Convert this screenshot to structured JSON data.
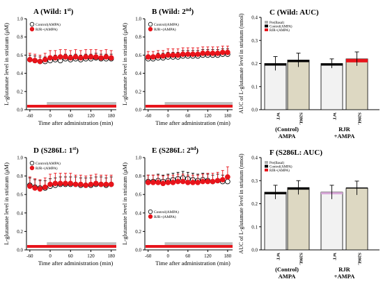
{
  "x_axis_label": "Time after administration (min)",
  "time_y_axis_label": "L-glutamate level in striatum (μM)",
  "auc_y_axis_label": "AUC of L-glutamate level in striatum (nmol)",
  "x_tick_labels": [
    "-60",
    "0",
    "60",
    "120",
    "180"
  ],
  "bar_group_labels": [
    [
      "(Control)",
      "AMPA"
    ],
    [
      "RJR",
      "+AMPA"
    ]
  ],
  "bar_category_labels": [
    "WT",
    "S286L"
  ],
  "colors": {
    "control": "#000000",
    "rjr": "#e8141b",
    "wt_bar": "#f2f2f2",
    "s286l_bar": "#ddd8c2",
    "basal": "#b0b0b0",
    "infusion_red": "#e8141b",
    "infusion_grey": "#c0c0c0",
    "purple": "#d7a6d8"
  },
  "chart_data": [
    {
      "type": "line",
      "panel_letter": "A",
      "title": "(Wild: 1st)",
      "title_parts": [
        "(Wild: 1",
        "st",
        ")"
      ],
      "legend": [
        "Control(AMPA)",
        "RJR+(AMPA)"
      ],
      "ylim": [
        0,
        1.0
      ],
      "yticks": [
        "0.0",
        "0.2",
        "0.4",
        "0.6",
        "0.8",
        "1.0"
      ],
      "xlim": [
        -70,
        195
      ],
      "x": [
        -60,
        -45,
        -30,
        -15,
        0,
        15,
        30,
        45,
        60,
        75,
        90,
        105,
        120,
        135,
        150,
        165,
        180
      ],
      "series": [
        {
          "name": "Control(AMPA)",
          "values": [
            0.55,
            0.54,
            0.53,
            0.53,
            0.54,
            0.55,
            0.54,
            0.56,
            0.55,
            0.56,
            0.55,
            0.56,
            0.56,
            0.57,
            0.56,
            0.56,
            0.56
          ],
          "err": [
            0.05,
            0.05,
            0.05,
            0.05,
            0.05,
            0.05,
            0.05,
            0.05,
            0.05,
            0.05,
            0.05,
            0.05,
            0.05,
            0.05,
            0.05,
            0.05,
            0.05
          ]
        },
        {
          "name": "RJR+(AMPA)",
          "values": [
            0.55,
            0.54,
            0.53,
            0.55,
            0.57,
            0.57,
            0.58,
            0.58,
            0.57,
            0.58,
            0.57,
            0.58,
            0.58,
            0.58,
            0.57,
            0.58,
            0.57
          ],
          "err": [
            0.07,
            0.07,
            0.07,
            0.07,
            0.08,
            0.08,
            0.08,
            0.08,
            0.08,
            0.08,
            0.08,
            0.08,
            0.08,
            0.08,
            0.08,
            0.08,
            0.08
          ]
        }
      ]
    },
    {
      "type": "line",
      "panel_letter": "B",
      "title": "(Wild: 2nd)",
      "title_parts": [
        "(Wild: 2",
        "nd",
        ")"
      ],
      "legend": [
        "Control(AMPA)",
        "RJR+(AMPA)"
      ],
      "ylim": [
        0,
        1.0
      ],
      "yticks": [
        "0.0",
        "0.2",
        "0.4",
        "0.6",
        "0.8",
        "1.0"
      ],
      "xlim": [
        -70,
        195
      ],
      "x": [
        -60,
        -45,
        -30,
        -15,
        0,
        15,
        30,
        45,
        60,
        75,
        90,
        105,
        120,
        135,
        150,
        165,
        180
      ],
      "series": [
        {
          "name": "Control(AMPA)",
          "values": [
            0.56,
            0.56,
            0.57,
            0.57,
            0.58,
            0.58,
            0.58,
            0.59,
            0.59,
            0.59,
            0.59,
            0.6,
            0.6,
            0.6,
            0.6,
            0.61,
            0.61
          ],
          "err": [
            0.04,
            0.04,
            0.05,
            0.05,
            0.05,
            0.05,
            0.05,
            0.06,
            0.06,
            0.06,
            0.06,
            0.06,
            0.06,
            0.06,
            0.06,
            0.06,
            0.06
          ]
        },
        {
          "name": "RJR+(AMPA)",
          "values": [
            0.58,
            0.58,
            0.59,
            0.59,
            0.6,
            0.6,
            0.6,
            0.61,
            0.61,
            0.61,
            0.61,
            0.62,
            0.62,
            0.62,
            0.62,
            0.63,
            0.63
          ],
          "err": [
            0.06,
            0.06,
            0.06,
            0.06,
            0.07,
            0.07,
            0.07,
            0.07,
            0.07,
            0.07,
            0.07,
            0.07,
            0.07,
            0.07,
            0.07,
            0.07,
            0.07
          ]
        }
      ]
    },
    {
      "type": "bar",
      "panel_letter": "C",
      "title": "(Wild: AUC)",
      "legend": [
        "Pre(Basal)",
        "Control(AMPA)",
        "RJR+(AMPA)"
      ],
      "ylim": [
        0,
        0.4
      ],
      "yticks": [
        "0.0",
        "0.1",
        "0.2",
        "0.3",
        "0.4"
      ],
      "categories": [
        "WT",
        "S286L",
        "WT",
        "S286L"
      ],
      "values": [
        0.2,
        0.215,
        0.2,
        0.22
      ],
      "err": [
        0.03,
        0.03,
        0.02,
        0.03
      ],
      "caps": [
        "control",
        "control",
        "control",
        "rjr"
      ]
    },
    {
      "type": "line",
      "panel_letter": "D",
      "title": "(S286L: 1st)",
      "title_parts": [
        "(S286L: 1",
        "st",
        ")"
      ],
      "legend": [
        "Control(AMPA)",
        "RJR+(AMPA)"
      ],
      "ylim": [
        0,
        1.0
      ],
      "yticks": [
        "0.0",
        "0.2",
        "0.4",
        "0.6",
        "0.8",
        "1.0"
      ],
      "xlim": [
        -70,
        195
      ],
      "x": [
        -60,
        -45,
        -30,
        -15,
        0,
        15,
        30,
        45,
        60,
        75,
        90,
        105,
        120,
        135,
        150,
        165,
        180
      ],
      "series": [
        {
          "name": "Control(AMPA)",
          "values": [
            0.7,
            0.68,
            0.67,
            0.67,
            0.69,
            0.7,
            0.71,
            0.71,
            0.71,
            0.71,
            0.7,
            0.7,
            0.7,
            0.71,
            0.71,
            0.7,
            0.71
          ],
          "err": [
            0.08,
            0.08,
            0.08,
            0.08,
            0.08,
            0.08,
            0.08,
            0.08,
            0.08,
            0.08,
            0.08,
            0.08,
            0.08,
            0.08,
            0.08,
            0.08,
            0.08
          ]
        },
        {
          "name": "RJR+(AMPA)",
          "values": [
            0.69,
            0.67,
            0.66,
            0.68,
            0.71,
            0.72,
            0.72,
            0.72,
            0.72,
            0.71,
            0.71,
            0.7,
            0.71,
            0.72,
            0.71,
            0.71,
            0.71
          ],
          "err": [
            0.1,
            0.1,
            0.1,
            0.1,
            0.11,
            0.11,
            0.11,
            0.11,
            0.11,
            0.1,
            0.1,
            0.1,
            0.1,
            0.1,
            0.1,
            0.1,
            0.1
          ]
        }
      ]
    },
    {
      "type": "line",
      "panel_letter": "E",
      "title": "(S286L: 2nd)",
      "title_parts": [
        "(S286L: 2",
        "nd",
        ")"
      ],
      "legend": [
        "Control(AMPA)",
        "RJR+(AMPA)"
      ],
      "ylim": [
        0,
        1.0
      ],
      "yticks": [
        "0.0",
        "0.2",
        "0.4",
        "0.6",
        "0.8",
        "1.0"
      ],
      "xlim": [
        -70,
        195
      ],
      "x": [
        -60,
        -45,
        -30,
        -15,
        0,
        15,
        30,
        45,
        60,
        75,
        90,
        105,
        120,
        135,
        150,
        165,
        180
      ],
      "series": [
        {
          "name": "Control(AMPA)",
          "values": [
            0.74,
            0.74,
            0.75,
            0.74,
            0.75,
            0.76,
            0.77,
            0.78,
            0.77,
            0.76,
            0.75,
            0.76,
            0.75,
            0.74,
            0.75,
            0.74,
            0.74
          ],
          "err": [
            0.07,
            0.07,
            0.07,
            0.07,
            0.07,
            0.07,
            0.07,
            0.07,
            0.07,
            0.07,
            0.07,
            0.07,
            0.07,
            0.07,
            0.07,
            0.07,
            0.07
          ]
        },
        {
          "name": "RJR+(AMPA)",
          "values": [
            0.73,
            0.73,
            0.73,
            0.72,
            0.73,
            0.73,
            0.74,
            0.74,
            0.73,
            0.73,
            0.73,
            0.74,
            0.74,
            0.74,
            0.75,
            0.76,
            0.79
          ],
          "err": [
            0.08,
            0.08,
            0.08,
            0.08,
            0.08,
            0.08,
            0.08,
            0.08,
            0.08,
            0.08,
            0.08,
            0.08,
            0.09,
            0.09,
            0.09,
            0.1,
            0.11
          ]
        }
      ]
    },
    {
      "type": "bar",
      "panel_letter": "F",
      "title": "(S286L: AUC)",
      "legend": [
        "Pre(Basal)",
        "Control(AMPA)",
        "RJR+(AMPA)"
      ],
      "ylim": [
        0,
        0.4
      ],
      "yticks": [
        "0.0",
        "0.1",
        "0.2",
        "0.3",
        "0.4"
      ],
      "categories": [
        "WT",
        "S286L",
        "WT",
        "S286L"
      ],
      "values": [
        0.25,
        0.27,
        0.25,
        0.268
      ],
      "err": [
        0.03,
        0.03,
        0.03,
        0.03
      ],
      "caps": [
        "control",
        "control",
        "purple",
        "none"
      ]
    }
  ]
}
